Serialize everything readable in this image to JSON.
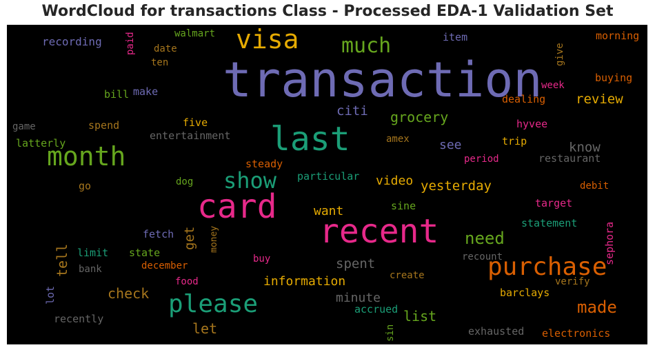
{
  "title": "WordCloud for transactions Class - Processed EDA-1 Validation Set",
  "palette": {
    "purple": "#6e6bb4",
    "pink": "#e7298a",
    "green": "#1b9e77",
    "orange": "#d95f02",
    "lime": "#66a61e",
    "gold": "#e6ab02",
    "brown": "#a6761d",
    "gray": "#666666"
  },
  "words": [
    {
      "text": "transaction",
      "color": "#6e6bb4"
    },
    {
      "text": "recent",
      "color": "#e7298a"
    },
    {
      "text": "last",
      "color": "#1b9e77"
    },
    {
      "text": "card",
      "color": "#e7298a"
    },
    {
      "text": "visa",
      "color": "#e6ab02"
    },
    {
      "text": "month",
      "color": "#66a61e"
    },
    {
      "text": "please",
      "color": "#1b9e77"
    },
    {
      "text": "purchase",
      "color": "#d95f02"
    },
    {
      "text": "show",
      "color": "#1b9e77"
    },
    {
      "text": "much",
      "color": "#66a61e"
    },
    {
      "text": "need",
      "color": "#66a61e"
    },
    {
      "text": "made",
      "color": "#d95f02"
    },
    {
      "text": "information",
      "color": "#e6ab02"
    },
    {
      "text": "spent",
      "color": "#666666"
    },
    {
      "text": "minute",
      "color": "#666666"
    },
    {
      "text": "check",
      "color": "#a6761d"
    },
    {
      "text": "grocery",
      "color": "#66a61e"
    },
    {
      "text": "yesterday",
      "color": "#e6ab02"
    },
    {
      "text": "video",
      "color": "#e6ab02"
    },
    {
      "text": "want",
      "color": "#e6ab02"
    },
    {
      "text": "review",
      "color": "#e6ab02"
    },
    {
      "text": "citi",
      "color": "#6e6bb4"
    },
    {
      "text": "list",
      "color": "#66a61e"
    },
    {
      "text": "know",
      "color": "#666666"
    },
    {
      "text": "see",
      "color": "#6e6bb4"
    },
    {
      "text": "tell",
      "color": "#a6761d"
    },
    {
      "text": "let",
      "color": "#a6761d"
    },
    {
      "text": "get",
      "color": "#a6761d"
    },
    {
      "text": "recording",
      "color": "#6e6bb4"
    },
    {
      "text": "walmart",
      "color": "#66a61e"
    },
    {
      "text": "paid",
      "color": "#e7298a"
    },
    {
      "text": "date",
      "color": "#a6761d"
    },
    {
      "text": "ten",
      "color": "#a6761d"
    },
    {
      "text": "item",
      "color": "#6e6bb4"
    },
    {
      "text": "morning",
      "color": "#d95f02"
    },
    {
      "text": "give",
      "color": "#a6761d"
    },
    {
      "text": "buying",
      "color": "#d95f02"
    },
    {
      "text": "week",
      "color": "#e7298a"
    },
    {
      "text": "dealing",
      "color": "#d95f02"
    },
    {
      "text": "bill",
      "color": "#66a61e"
    },
    {
      "text": "make",
      "color": "#6e6bb4"
    },
    {
      "text": "game",
      "color": "#666666"
    },
    {
      "text": "spend",
      "color": "#a6761d"
    },
    {
      "text": "five",
      "color": "#e6ab02"
    },
    {
      "text": "entertainment",
      "color": "#666666"
    },
    {
      "text": "latterly",
      "color": "#66a61e"
    },
    {
      "text": "hyvee",
      "color": "#e7298a"
    },
    {
      "text": "amex",
      "color": "#a6761d"
    },
    {
      "text": "trip",
      "color": "#e6ab02"
    },
    {
      "text": "steady",
      "color": "#d95f02"
    },
    {
      "text": "period",
      "color": "#e7298a"
    },
    {
      "text": "restaurant",
      "color": "#666666"
    },
    {
      "text": "go",
      "color": "#a6761d"
    },
    {
      "text": "dog",
      "color": "#66a61e"
    },
    {
      "text": "particular",
      "color": "#1b9e77"
    },
    {
      "text": "debit",
      "color": "#d95f02"
    },
    {
      "text": "sine",
      "color": "#66a61e"
    },
    {
      "text": "target",
      "color": "#e7298a"
    },
    {
      "text": "statement",
      "color": "#1b9e77"
    },
    {
      "text": "sephora",
      "color": "#e7298a"
    },
    {
      "text": "fetch",
      "color": "#6e6bb4"
    },
    {
      "text": "money",
      "color": "#a6761d"
    },
    {
      "text": "limit",
      "color": "#1b9e77"
    },
    {
      "text": "state",
      "color": "#66a61e"
    },
    {
      "text": "buy",
      "color": "#e7298a"
    },
    {
      "text": "recount",
      "color": "#666666"
    },
    {
      "text": "bank",
      "color": "#666666"
    },
    {
      "text": "december",
      "color": "#d95f02"
    },
    {
      "text": "food",
      "color": "#e7298a"
    },
    {
      "text": "create",
      "color": "#a6761d"
    },
    {
      "text": "verify",
      "color": "#a6761d"
    },
    {
      "text": "lot",
      "color": "#6e6bb4"
    },
    {
      "text": "barclays",
      "color": "#e6ab02"
    },
    {
      "text": "recently",
      "color": "#666666"
    },
    {
      "text": "accrued",
      "color": "#1b9e77"
    },
    {
      "text": "sin",
      "color": "#66a61e"
    },
    {
      "text": "exhausted",
      "color": "#666666"
    },
    {
      "text": "electronics",
      "color": "#d95f02"
    }
  ]
}
